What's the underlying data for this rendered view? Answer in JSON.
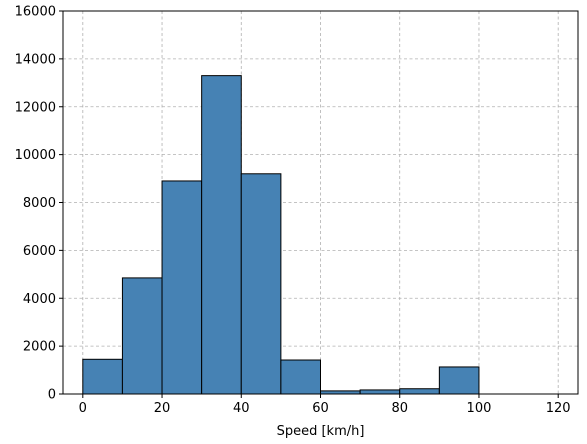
{
  "chart_data": {
    "type": "bar",
    "title": "",
    "xlabel": "Speed [km/h]",
    "ylabel": "",
    "xlim": [
      -5,
      125
    ],
    "ylim": [
      0,
      16000
    ],
    "xticks": [
      0,
      20,
      40,
      60,
      80,
      100,
      120
    ],
    "yticks": [
      0,
      2000,
      4000,
      6000,
      8000,
      10000,
      12000,
      14000,
      16000
    ],
    "grid": true,
    "bar_color": "#4682b4",
    "edge_color": "#000000",
    "grid_color": "#b0b0b0",
    "bins": [
      {
        "start": 0,
        "end": 10,
        "value": 1450
      },
      {
        "start": 10,
        "end": 20,
        "value": 4850
      },
      {
        "start": 20,
        "end": 30,
        "value": 8900
      },
      {
        "start": 30,
        "end": 40,
        "value": 13300
      },
      {
        "start": 40,
        "end": 50,
        "value": 9200
      },
      {
        "start": 50,
        "end": 60,
        "value": 1420
      },
      {
        "start": 60,
        "end": 70,
        "value": 130
      },
      {
        "start": 70,
        "end": 80,
        "value": 170
      },
      {
        "start": 80,
        "end": 90,
        "value": 220
      },
      {
        "start": 90,
        "end": 100,
        "value": 1130
      }
    ]
  }
}
